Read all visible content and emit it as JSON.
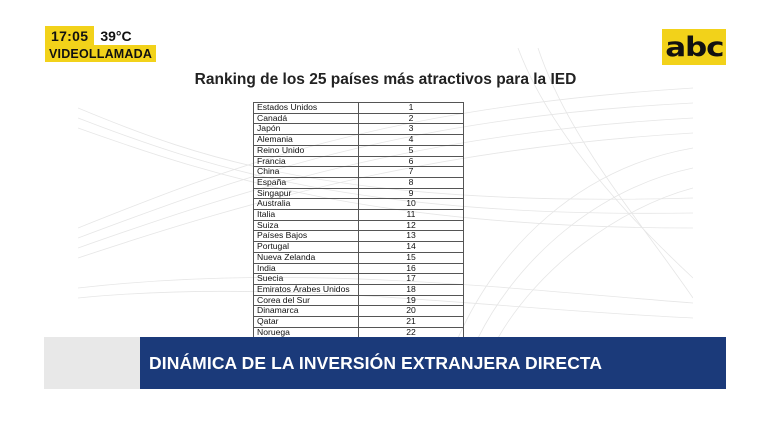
{
  "status_bug": {
    "time": "17:05",
    "temperature": "39°C",
    "live_label": "VIDEOLLAMADA"
  },
  "brand": {
    "logo_text": "abc",
    "accent_color": "#f2d21a"
  },
  "slide": {
    "title": "Ranking de los 25 países más atractivos para la IED",
    "rows": [
      {
        "country": "Estados Unidos",
        "rank": "1"
      },
      {
        "country": "Canadá",
        "rank": "2"
      },
      {
        "country": "Japón",
        "rank": "3"
      },
      {
        "country": "Alemania",
        "rank": "4"
      },
      {
        "country": "Reino Unido",
        "rank": "5"
      },
      {
        "country": "Francia",
        "rank": "6"
      },
      {
        "country": "China",
        "rank": "7"
      },
      {
        "country": "España",
        "rank": "8"
      },
      {
        "country": "Singapur",
        "rank": "9"
      },
      {
        "country": "Australia",
        "rank": "10"
      },
      {
        "country": "Italia",
        "rank": "11"
      },
      {
        "country": "Suiza",
        "rank": "12"
      },
      {
        "country": "Países Bajos",
        "rank": "13"
      },
      {
        "country": "Portugal",
        "rank": "14"
      },
      {
        "country": "Nueva Zelanda",
        "rank": "15"
      },
      {
        "country": "India",
        "rank": "16"
      },
      {
        "country": "Suecia",
        "rank": "17"
      },
      {
        "country": "Emiratos Árabes Unidos",
        "rank": "18"
      },
      {
        "country": "Corea del Sur",
        "rank": "19"
      },
      {
        "country": "Dinamarca",
        "rank": "20"
      },
      {
        "country": "Qatar",
        "rank": "21"
      },
      {
        "country": "Noruega",
        "rank": "22"
      }
    ]
  },
  "lower_third": {
    "headline": "DINÁMICA DE LA INVERSIÓN EXTRANJERA DIRECTA",
    "bar_color": "#1b3a7a"
  }
}
